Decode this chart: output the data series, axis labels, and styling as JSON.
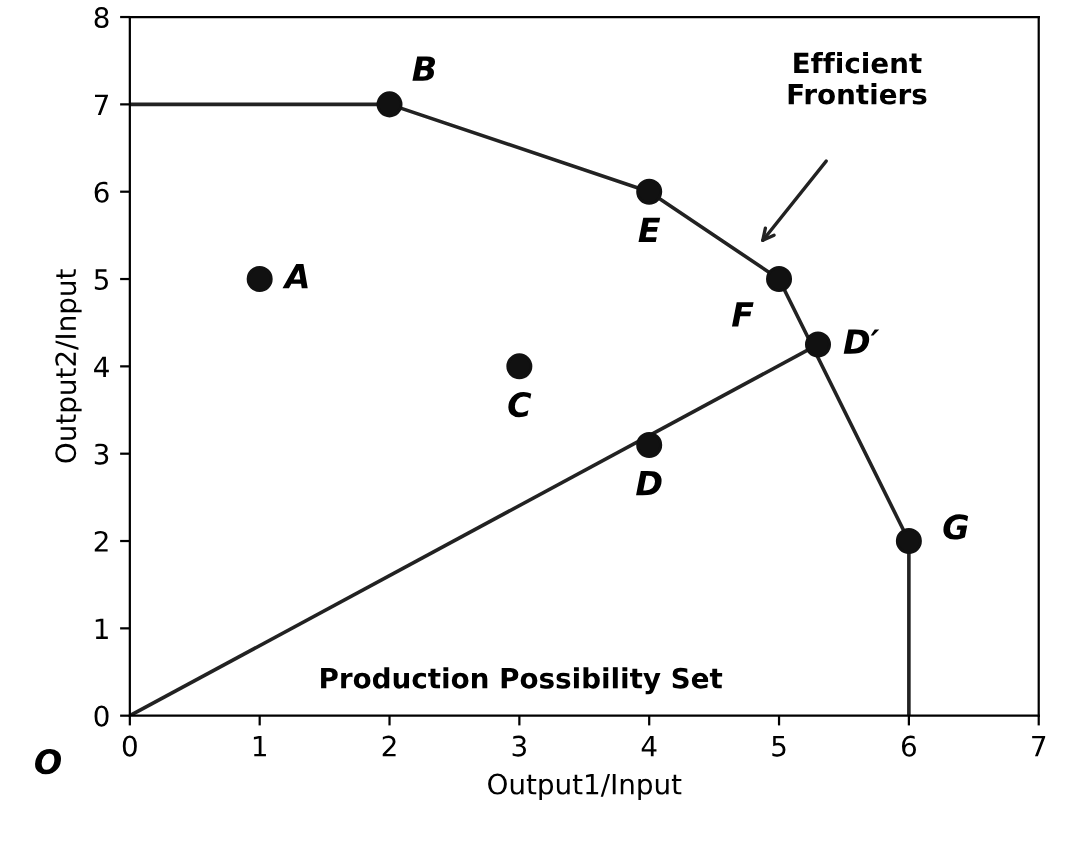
{
  "chart_data": {
    "type": "line",
    "xlabel": "Output1/Input",
    "ylabel": "Output2/Input",
    "xlim": [
      0,
      7
    ],
    "ylim": [
      0,
      8
    ],
    "xticks": [
      0,
      1,
      2,
      3,
      4,
      5,
      6,
      7
    ],
    "yticks": [
      0,
      1,
      2,
      3,
      4,
      5,
      6,
      7,
      8
    ],
    "grid": false,
    "legend": false,
    "series": [
      {
        "color": "#222222",
        "x": [
          0,
          2,
          4,
          5,
          6,
          6
        ],
        "values": [
          7,
          7,
          6,
          5,
          2,
          0
        ],
        "marker": "none"
      },
      {
        "color": "#222222",
        "x": [
          0,
          5.3
        ],
        "values": [
          0,
          4.25
        ],
        "marker": "none"
      },
      {
        "type": "scatter",
        "color": "#111111",
        "x": [
          1,
          2,
          3,
          4,
          4,
          5,
          5.3,
          6
        ],
        "values": [
          5,
          7,
          4,
          3.1,
          6,
          5,
          4.25,
          2
        ],
        "marker": "circle"
      }
    ],
    "annotations": [
      "Efficient\nFrontiers",
      "Production Possibility Set",
      "O",
      {
        "text": "A",
        "x": 1,
        "y": 5
      },
      {
        "text": "B",
        "x": 2,
        "y": 7
      },
      {
        "text": "C",
        "x": 3,
        "y": 4
      },
      {
        "text": "D",
        "x": 4,
        "y": 3.1
      },
      {
        "text": "E",
        "x": 4,
        "y": 6
      },
      {
        "text": "F",
        "x": 5,
        "y": 5
      },
      {
        "text": "D′",
        "x": 5.3,
        "y": 4.25
      },
      {
        "text": "G",
        "x": 6,
        "y": 2
      }
    ]
  }
}
